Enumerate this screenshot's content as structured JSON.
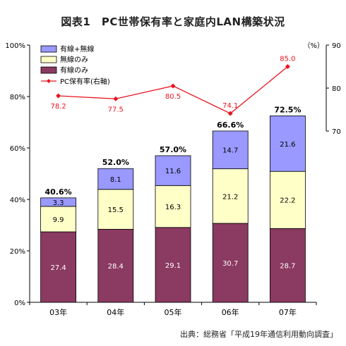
{
  "title": "図表1　PC世帯保有率と家庭内LAN構築状況",
  "source": "出典：総務省「平成19年通信利用動向調査」",
  "chart_data": {
    "type": "bar",
    "stacked": true,
    "categories": [
      "03年",
      "04年",
      "05年",
      "06年",
      "07年"
    ],
    "series": [
      {
        "name": "有線のみ",
        "color": "#8b3a62",
        "values": [
          27.4,
          28.4,
          29.1,
          30.7,
          28.7
        ]
      },
      {
        "name": "無線のみ",
        "color": "#ffffc8",
        "values": [
          9.9,
          15.5,
          16.3,
          21.2,
          22.2
        ]
      },
      {
        "name": "有線+無線",
        "color": "#9999ff",
        "values": [
          3.3,
          8.1,
          11.6,
          14.7,
          21.6
        ]
      }
    ],
    "totals": [
      "40.6%",
      "52.0%",
      "57.0%",
      "66.6%",
      "72.5%"
    ],
    "y_ticks": [
      "0%",
      "20%",
      "40%",
      "60%",
      "80%",
      "100%"
    ],
    "ylim": [
      0,
      100
    ],
    "line": {
      "name": "PC保有率(右軸)",
      "color": "#e8141e",
      "values": [
        78.2,
        77.5,
        80.5,
        74.1,
        85.0
      ],
      "labels": [
        "78.2",
        "77.5",
        "80.5",
        "74.1",
        "85.0"
      ]
    },
    "y2_unit": "（%）",
    "y2_ticks": [
      "70",
      "80",
      "90"
    ],
    "y2lim": [
      70,
      90
    ],
    "legend_position": "top-left",
    "grid": false
  }
}
